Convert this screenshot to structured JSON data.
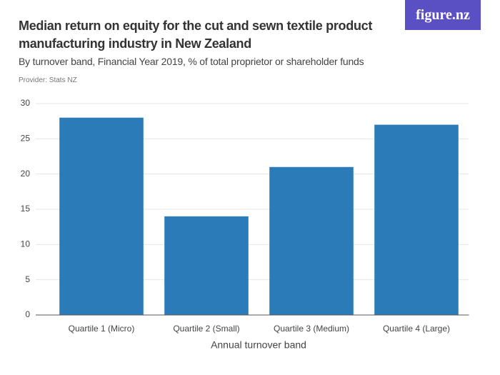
{
  "chart_data": {
    "type": "bar",
    "title": "Median return on equity for the cut and sewn textile product manufacturing industry in New Zealand",
    "subtitle": "By turnover band, Financial Year 2019, % of total proprietor or shareholder funds",
    "provider": "Provider: Stats NZ",
    "logo": "figure.nz",
    "x_label": "Annual turnover band",
    "categories": [
      "Quartile 1 (Micro)",
      "Quartile 2 (Small)",
      "Quartile 3 (Medium)",
      "Quartile 4 (Large)"
    ],
    "values": [
      28,
      14,
      21,
      27
    ],
    "color": "#2b7bb9",
    "ylim": [
      0,
      30
    ],
    "yticks": [
      0,
      5,
      10,
      15,
      20,
      25,
      30
    ],
    "grid": true
  }
}
